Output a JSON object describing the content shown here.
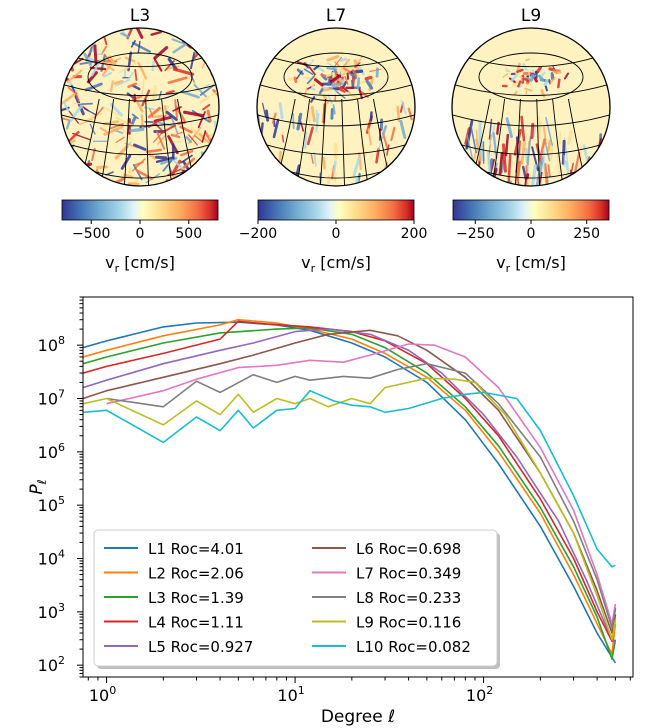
{
  "globes": [
    {
      "title": "L3",
      "cbar_ticks": [
        {
          "v": -500,
          "t": "−500"
        },
        {
          "v": 0,
          "t": "0"
        },
        {
          "v": 500,
          "t": "500"
        }
      ],
      "cbar_range": [
        -800,
        800
      ],
      "cbar_label": "v",
      "cbar_sub": "r",
      "cbar_unit": " [cm/s]",
      "pattern": "dense"
    },
    {
      "title": "L7",
      "cbar_ticks": [
        {
          "v": -200,
          "t": "−200"
        },
        {
          "v": 0,
          "t": "0"
        },
        {
          "v": 200,
          "t": "200"
        }
      ],
      "cbar_range": [
        -200,
        200
      ],
      "cbar_label": "v",
      "cbar_sub": "r",
      "cbar_unit": " [cm/s]",
      "pattern": "cap"
    },
    {
      "title": "L9",
      "cbar_ticks": [
        {
          "v": -250,
          "t": "−250"
        },
        {
          "v": 0,
          "t": "0"
        },
        {
          "v": 250,
          "t": "250"
        }
      ],
      "cbar_range": [
        -350,
        350
      ],
      "cbar_label": "v",
      "cbar_sub": "r",
      "cbar_unit": " [cm/s]",
      "pattern": "bands"
    }
  ],
  "chart_data": {
    "type": "line",
    "xscale": "log",
    "yscale": "log",
    "xlim": [
      0.75,
      620
    ],
    "ylim": [
      60,
      800000000.0
    ],
    "xlabel": "Degree ℓ",
    "ylabel_main": "P",
    "ylabel_sub": "ℓ",
    "xticks": [
      {
        "v": 1,
        "m": "10",
        "e": "0"
      },
      {
        "v": 10,
        "m": "10",
        "e": "1"
      },
      {
        "v": 100,
        "m": "10",
        "e": "2"
      }
    ],
    "yticks": [
      {
        "v": 100,
        "m": "10",
        "e": "2"
      },
      {
        "v": 1000,
        "m": "10",
        "e": "3"
      },
      {
        "v": 10000,
        "m": "10",
        "e": "4"
      },
      {
        "v": 100000,
        "m": "10",
        "e": "5"
      },
      {
        "v": 1000000,
        "m": "10",
        "e": "6"
      },
      {
        "v": 10000000,
        "m": "10",
        "e": "7"
      },
      {
        "v": 100000000,
        "m": "10",
        "e": "8"
      }
    ],
    "legend_position": "lower-left",
    "series": [
      {
        "name": "L1 Roc=4.01",
        "color": "#1f77b4",
        "points": [
          [
            0.75,
            90000000.0
          ],
          [
            1,
            120000000.0
          ],
          [
            2,
            220000000.0
          ],
          [
            3,
            260000000.0
          ],
          [
            5,
            270000000.0
          ],
          [
            8,
            240000000.0
          ],
          [
            12,
            190000000.0
          ],
          [
            20,
            110000000.0
          ],
          [
            30,
            60000000.0
          ],
          [
            50,
            20000000.0
          ],
          [
            80,
            4000000.0
          ],
          [
            120,
            600000.0
          ],
          [
            200,
            40000.0
          ],
          [
            300,
            3000.0
          ],
          [
            400,
            400
          ],
          [
            500,
            110
          ]
        ]
      },
      {
        "name": "L2 Roc=2.06",
        "color": "#ff7f0e",
        "points": [
          [
            0.75,
            60000000.0
          ],
          [
            1,
            80000000.0
          ],
          [
            2,
            150000000.0
          ],
          [
            4,
            240000000.0
          ],
          [
            5,
            300000000.0
          ],
          [
            8,
            260000000.0
          ],
          [
            12,
            200000000.0
          ],
          [
            20,
            130000000.0
          ],
          [
            30,
            70000000.0
          ],
          [
            50,
            25000000.0
          ],
          [
            80,
            6000000.0
          ],
          [
            120,
            1000000.0
          ],
          [
            200,
            70000.0
          ],
          [
            300,
            5000.0
          ],
          [
            400,
            600
          ],
          [
            480,
            160
          ],
          [
            500,
            600
          ]
        ]
      },
      {
        "name": "L3 Roc=1.39",
        "color": "#2ca02c",
        "points": [
          [
            0.75,
            45000000.0
          ],
          [
            1,
            60000000.0
          ],
          [
            2,
            110000000.0
          ],
          [
            4,
            170000000.0
          ],
          [
            8,
            200000000.0
          ],
          [
            12,
            210000000.0
          ],
          [
            20,
            160000000.0
          ],
          [
            30,
            90000000.0
          ],
          [
            50,
            30000000.0
          ],
          [
            80,
            7000000.0
          ],
          [
            120,
            1300000.0
          ],
          [
            200,
            90000.0
          ],
          [
            300,
            7000.0
          ],
          [
            400,
            800
          ],
          [
            480,
            130
          ],
          [
            500,
            300
          ]
        ]
      },
      {
        "name": "L4 Roc=1.11",
        "color": "#d62728",
        "points": [
          [
            0.75,
            30000000.0
          ],
          [
            1,
            40000000.0
          ],
          [
            2,
            70000000.0
          ],
          [
            4,
            130000000.0
          ],
          [
            5,
            280000000.0
          ],
          [
            7,
            250000000.0
          ],
          [
            12,
            220000000.0
          ],
          [
            20,
            180000000.0
          ],
          [
            30,
            120000000.0
          ],
          [
            50,
            45000000.0
          ],
          [
            80,
            10000000.0
          ],
          [
            120,
            2000000.0
          ],
          [
            200,
            130000.0
          ],
          [
            300,
            10000.0
          ],
          [
            400,
            1000
          ],
          [
            480,
            280
          ],
          [
            500,
            900
          ]
        ]
      },
      {
        "name": "L5 Roc=0.927",
        "color": "#9467bd",
        "points": [
          [
            0.75,
            16000000.0
          ],
          [
            1,
            22000000.0
          ],
          [
            2,
            45000000.0
          ],
          [
            4,
            80000000.0
          ],
          [
            6,
            110000000.0
          ],
          [
            10,
            180000000.0
          ],
          [
            15,
            200000000.0
          ],
          [
            25,
            160000000.0
          ],
          [
            40,
            80000000.0
          ],
          [
            60,
            30000000.0
          ],
          [
            100,
            5000000.0
          ],
          [
            150,
            800000.0
          ],
          [
            250,
            50000.0
          ],
          [
            350,
            4000.0
          ],
          [
            450,
            500
          ],
          [
            500,
            250
          ]
        ]
      },
      {
        "name": "L6 Roc=0.698",
        "color": "#8c564b",
        "points": [
          [
            0.75,
            10000000.0
          ],
          [
            1,
            14000000.0
          ],
          [
            2,
            25000000.0
          ],
          [
            4,
            45000000.0
          ],
          [
            6,
            65000000.0
          ],
          [
            10,
            110000000.0
          ],
          [
            15,
            160000000.0
          ],
          [
            25,
            190000000.0
          ],
          [
            35,
            150000000.0
          ],
          [
            50,
            80000000.0
          ],
          [
            80,
            25000000.0
          ],
          [
            120,
            6000000.0
          ],
          [
            200,
            400000.0
          ],
          [
            300,
            30000.0
          ],
          [
            400,
            2500
          ],
          [
            480,
            400
          ],
          [
            500,
            1200
          ]
        ]
      },
      {
        "name": "L7 Roc=0.349",
        "color": "#e377c2",
        "points": [
          [
            1,
            8000000.0
          ],
          [
            2,
            14000000.0
          ],
          [
            3,
            23000000.0
          ],
          [
            5,
            38000000.0
          ],
          [
            8,
            42000000.0
          ],
          [
            12,
            52000000.0
          ],
          [
            18,
            48000000.0
          ],
          [
            25,
            65000000.0
          ],
          [
            40,
            105000000.0
          ],
          [
            55,
            100000000.0
          ],
          [
            80,
            60000000.0
          ],
          [
            120,
            16000000.0
          ],
          [
            200,
            1200000.0
          ],
          [
            300,
            80000.0
          ],
          [
            400,
            5000
          ],
          [
            480,
            600
          ],
          [
            500,
            1400
          ]
        ]
      },
      {
        "name": "L8 Roc=0.233",
        "color": "#7f7f7f",
        "points": [
          [
            1,
            10000000.0
          ],
          [
            2,
            7000000.0
          ],
          [
            3,
            21000000.0
          ],
          [
            4,
            13000000.0
          ],
          [
            6,
            28000000.0
          ],
          [
            8,
            20000000.0
          ],
          [
            10,
            26000000.0
          ],
          [
            12,
            22000000.0
          ],
          [
            18,
            26000000.0
          ],
          [
            25,
            24000000.0
          ],
          [
            35,
            35000000.0
          ],
          [
            50,
            45000000.0
          ],
          [
            80,
            30000000.0
          ],
          [
            120,
            8000000.0
          ],
          [
            200,
            800000.0
          ],
          [
            300,
            50000.0
          ],
          [
            400,
            4000
          ],
          [
            480,
            500
          ],
          [
            500,
            1100
          ]
        ]
      },
      {
        "name": "L9 Roc=0.116",
        "color": "#bcbd22",
        "points": [
          [
            0.75,
            8000000.0
          ],
          [
            1,
            10000000.0
          ],
          [
            2,
            3200000.0
          ],
          [
            3,
            9000000.0
          ],
          [
            4,
            5000000.0
          ],
          [
            5,
            12000000.0
          ],
          [
            6,
            5500000.0
          ],
          [
            8,
            10000000.0
          ],
          [
            10,
            8000000.0
          ],
          [
            12,
            10000000.0
          ],
          [
            15,
            7000000.0
          ],
          [
            20,
            10000000.0
          ],
          [
            25,
            8000000.0
          ],
          [
            30,
            16000000.0
          ],
          [
            50,
            24000000.0
          ],
          [
            70,
            23000000.0
          ],
          [
            90,
            20000000.0
          ],
          [
            130,
            5000000.0
          ],
          [
            200,
            400000.0
          ],
          [
            300,
            30000.0
          ],
          [
            400,
            2000
          ],
          [
            480,
            300
          ],
          [
            500,
            700
          ]
        ]
      },
      {
        "name": "L10 Roc=0.082",
        "color": "#17becf",
        "points": [
          [
            0.75,
            5500000.0
          ],
          [
            1,
            6000000.0
          ],
          [
            2,
            1500000.0
          ],
          [
            3,
            4500000.0
          ],
          [
            4,
            2500000.0
          ],
          [
            5,
            6000000.0
          ],
          [
            6,
            2800000.0
          ],
          [
            8,
            6000000.0
          ],
          [
            10,
            6500000.0
          ],
          [
            12,
            14000000.0
          ],
          [
            16,
            9000000.0
          ],
          [
            20,
            7500000.0
          ],
          [
            25,
            7000000.0
          ],
          [
            30,
            5500000.0
          ],
          [
            40,
            6500000.0
          ],
          [
            60,
            10000000.0
          ],
          [
            80,
            12000000.0
          ],
          [
            100,
            13000000.0
          ],
          [
            150,
            10000000.0
          ],
          [
            200,
            2500000.0
          ],
          [
            300,
            150000.0
          ],
          [
            400,
            15000.0
          ],
          [
            480,
            7000.0
          ],
          [
            500,
            7500.0
          ]
        ]
      }
    ]
  }
}
